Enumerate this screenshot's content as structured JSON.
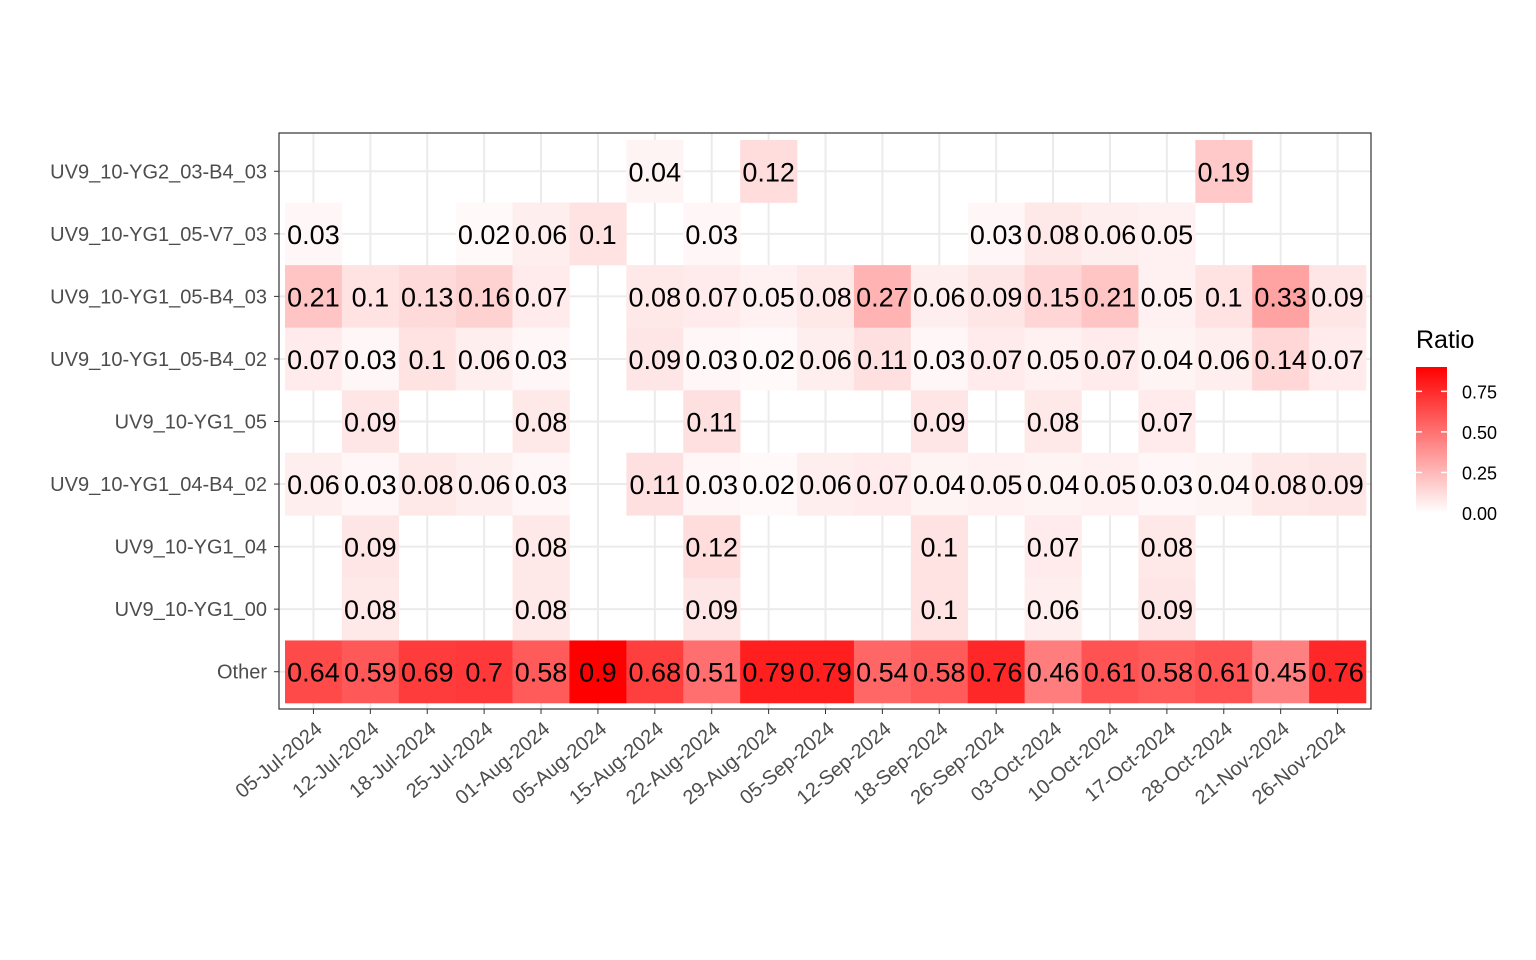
{
  "chart_data": {
    "type": "heatmap",
    "title": "",
    "xlabel": "",
    "ylabel": "",
    "x": [
      "05-Jul-2024",
      "12-Jul-2024",
      "18-Jul-2024",
      "25-Jul-2024",
      "01-Aug-2024",
      "05-Aug-2024",
      "15-Aug-2024",
      "22-Aug-2024",
      "29-Aug-2024",
      "05-Sep-2024",
      "12-Sep-2024",
      "18-Sep-2024",
      "26-Sep-2024",
      "03-Oct-2024",
      "10-Oct-2024",
      "17-Oct-2024",
      "28-Oct-2024",
      "21-Nov-2024",
      "26-Nov-2024"
    ],
    "y": [
      "UV9_10-YG2_03-B4_03",
      "UV9_10-YG1_05-V7_03",
      "UV9_10-YG1_05-B4_03",
      "UV9_10-YG1_05-B4_02",
      "UV9_10-YG1_05",
      "UV9_10-YG1_04-B4_02",
      "UV9_10-YG1_04",
      "UV9_10-YG1_00",
      "Other"
    ],
    "values": [
      [
        null,
        null,
        null,
        null,
        null,
        null,
        0.04,
        null,
        0.12,
        null,
        null,
        null,
        null,
        null,
        null,
        null,
        0.19,
        null,
        null
      ],
      [
        0.03,
        null,
        null,
        0.02,
        0.06,
        0.1,
        null,
        0.03,
        null,
        null,
        null,
        null,
        0.03,
        0.08,
        0.06,
        0.05,
        null,
        null,
        null
      ],
      [
        0.21,
        0.1,
        0.13,
        0.16,
        0.07,
        null,
        0.08,
        0.07,
        0.05,
        0.08,
        0.27,
        0.06,
        0.09,
        0.15,
        0.21,
        0.05,
        0.1,
        0.33,
        0.09
      ],
      [
        0.07,
        0.03,
        0.1,
        0.06,
        0.03,
        null,
        0.09,
        0.03,
        0.02,
        0.06,
        0.11,
        0.03,
        0.07,
        0.05,
        0.07,
        0.04,
        0.06,
        0.14,
        0.07
      ],
      [
        null,
        0.09,
        null,
        null,
        0.08,
        null,
        null,
        0.11,
        null,
        null,
        null,
        0.09,
        null,
        0.08,
        null,
        0.07,
        null,
        null,
        null
      ],
      [
        0.06,
        0.03,
        0.08,
        0.06,
        0.03,
        null,
        0.11,
        0.03,
        0.02,
        0.06,
        0.07,
        0.04,
        0.05,
        0.04,
        0.05,
        0.03,
        0.04,
        0.08,
        0.09
      ],
      [
        null,
        0.09,
        null,
        null,
        0.08,
        null,
        null,
        0.12,
        null,
        null,
        null,
        0.1,
        null,
        0.07,
        null,
        0.08,
        null,
        null,
        null
      ],
      [
        null,
        0.08,
        null,
        null,
        0.08,
        null,
        null,
        0.09,
        null,
        null,
        null,
        0.1,
        null,
        0.06,
        null,
        0.09,
        null,
        null,
        null
      ],
      [
        0.64,
        0.59,
        0.69,
        0.7,
        0.58,
        0.9,
        0.68,
        0.51,
        0.79,
        0.79,
        0.54,
        0.58,
        0.76,
        0.46,
        0.61,
        0.58,
        0.61,
        0.45,
        0.76
      ]
    ],
    "color_scale": {
      "low": "#ffffff",
      "high": "#ff0000",
      "min": 0,
      "max": 0.9
    },
    "legend": {
      "title": "Ratio",
      "ticks": [
        0.75,
        0.5,
        0.25,
        0.0
      ],
      "tick_labels": [
        "0.75",
        "0.50",
        "0.25",
        "0.00"
      ],
      "placement": "right"
    },
    "grid": true
  }
}
